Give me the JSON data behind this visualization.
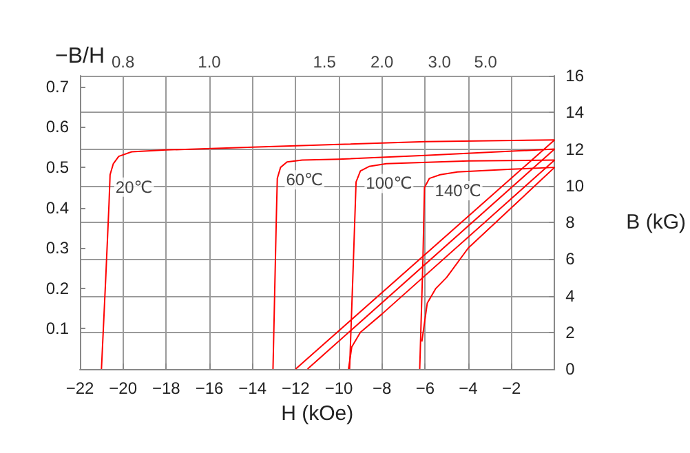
{
  "chart_data": {
    "type": "line",
    "xlabel": "H (kOe)",
    "ylabel": "B (kG)",
    "y2label": "−B/H",
    "xlim": [
      -22,
      0
    ],
    "xticks": [
      -22,
      -20,
      -18,
      -16,
      -14,
      -12,
      -10,
      -8,
      -6,
      -4,
      -2
    ],
    "ylim": [
      0,
      16
    ],
    "yticks": [
      0,
      2,
      4,
      6,
      8,
      10,
      12,
      14,
      16
    ],
    "y2lim": [
      0,
      0.727
    ],
    "y2ticks": [
      0.1,
      0.2,
      0.3,
      0.4,
      0.5,
      0.6,
      0.7
    ],
    "grid": true,
    "marker": "none",
    "line_style": "solid",
    "series": [
      {
        "color": "#ff0000",
        "x": [
          -21.0,
          -20.8,
          -20.65,
          -20.6,
          -20.45,
          -20.2,
          -19.6,
          -18,
          -14,
          -10,
          -6,
          0
        ],
        "values": [
          0,
          5,
          9,
          10.6,
          11.2,
          11.6,
          11.85,
          11.95,
          12.1,
          12.25,
          12.4,
          12.5
        ]
      },
      {
        "color": "#ff0000",
        "x": [
          -13.05,
          -12.9,
          -12.85,
          -12.7,
          -12.4,
          -11.7,
          -10,
          -6,
          0
        ],
        "values": [
          0,
          8,
          10.4,
          11.0,
          11.3,
          11.4,
          11.45,
          11.65,
          12.0
        ]
      },
      {
        "color": "#ff0000",
        "x": [
          -9.5,
          -9.35,
          -9.2,
          -9.0,
          -8.6,
          -7.8,
          -4,
          0
        ],
        "values": [
          0,
          5,
          10.2,
          10.8,
          11.05,
          11.2,
          11.35,
          11.4
        ]
      },
      {
        "color": "#ff0000",
        "x": [
          -6.25,
          -6.1,
          -6.03,
          -5.8,
          -5.3,
          -4.5,
          -2,
          0
        ],
        "values": [
          0,
          6,
          9.9,
          10.4,
          10.6,
          10.75,
          10.9,
          11.0
        ]
      },
      {
        "color": "#ff0000",
        "x": [
          -12,
          0
        ],
        "values": [
          0,
          12.5
        ]
      },
      {
        "color": "#ff0000",
        "x": [
          -11.45,
          0
        ],
        "values": [
          0,
          12.0
        ]
      },
      {
        "color": "#ff0000",
        "x": [
          -9.55,
          -9.4,
          -9.0,
          -8,
          0
        ],
        "values": [
          0,
          1.2,
          2.0,
          3.0,
          11.4
        ]
      },
      {
        "color": "#ff0000",
        "x": [
          -6.15,
          -5.9,
          -5.5,
          -5,
          -4,
          0
        ],
        "values": [
          1.5,
          3.6,
          4.4,
          5.0,
          6.6,
          11.0
        ]
      }
    ],
    "annotations": [
      "20℃",
      "60℃",
      "100℃",
      "140℃",
      "0.8",
      "1.0",
      "1.5",
      "2.0",
      "3.0",
      "5.0"
    ]
  }
}
